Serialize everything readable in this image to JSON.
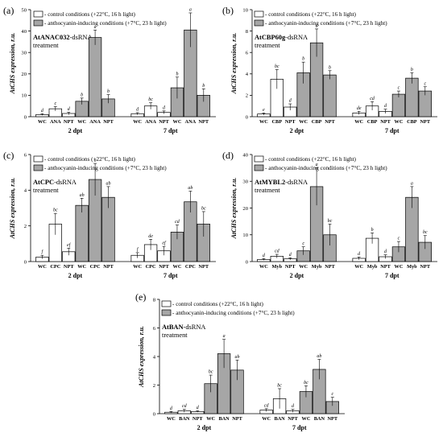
{
  "figure": {
    "legend": {
      "control": "- control conditions (+22°C, 16 h light)",
      "anthocyanin": "- anthocyanin-inducing conditions (+7°C, 23 h light)"
    },
    "colors": {
      "control": "#ffffff",
      "anthocyanin": "#a6a6a6",
      "stroke": "#000000"
    }
  },
  "chart_data": [
    {
      "type": "bar",
      "panel_label": "(a)",
      "treatment_line1": "AtANAC032-dsRNA",
      "treatment_bold": "AtANAC032",
      "treatment_suffix": "-dsRNA",
      "treatment_line2": "treatment",
      "ylabel": "AtCHS expression, r.u.",
      "ylim": [
        0,
        50
      ],
      "yticks": [
        "0",
        "10",
        "20",
        "30",
        "40",
        "50"
      ],
      "groups": [
        "2 dpt",
        "7 dpt"
      ],
      "categories": [
        "WC",
        "ANA",
        "NPT",
        "WC",
        "ANA",
        "NPT"
      ],
      "series": [
        {
          "name": "- control conditions (+22°C, 16 h light)",
          "values_2dpt": [
            1.0,
            3.7,
            1.5
          ],
          "values_7dpt": [
            1.4,
            5.0,
            2.0
          ],
          "errors_2dpt": [
            0.4,
            1.0,
            0.6
          ],
          "errors_7dpt": [
            0.5,
            1.5,
            0.7
          ],
          "letters_2dpt": [
            "d",
            "c",
            "d"
          ],
          "letters_7dpt": [
            "d",
            "bc",
            "d"
          ]
        },
        {
          "name": "- anthocyanin-inducing conditions (+7°C, 23 h light)",
          "values_2dpt": [
            7.2,
            37.0,
            8.3
          ],
          "values_7dpt": [
            13.5,
            40.5,
            10.0
          ],
          "errors_2dpt": [
            1.5,
            3.5,
            2.0
          ],
          "errors_7dpt": [
            5.0,
            8.0,
            3.0
          ],
          "letters_2dpt": [
            "b",
            "a",
            "b"
          ],
          "letters_7dpt": [
            "b",
            "a",
            "b"
          ]
        }
      ]
    },
    {
      "type": "bar",
      "panel_label": "(b)",
      "treatment_bold": "AtCBP60g",
      "treatment_suffix": "-dsRNA",
      "treatment_line2": "treatment",
      "ylabel": "AtCHS expression, r.u.",
      "ylim": [
        0,
        10
      ],
      "yticks": [
        "0",
        "2",
        "4",
        "6",
        "8",
        "10"
      ],
      "groups": [
        "2 dpt",
        "7 dpt"
      ],
      "categories": [
        "WC",
        "CBP",
        "NPT",
        "WC",
        "CBP",
        "NPT"
      ],
      "series": [
        {
          "name": "- control conditions (+22°C, 16 h light)",
          "values_2dpt": [
            0.25,
            3.5,
            0.9
          ],
          "values_7dpt": [
            0.35,
            1.0,
            0.5
          ],
          "errors_2dpt": [
            0.1,
            0.9,
            0.3
          ],
          "errors_7dpt": [
            0.15,
            0.4,
            0.2
          ],
          "letters_2dpt": [
            "e",
            "bc",
            "d"
          ],
          "letters_7dpt": [
            "de",
            "cd",
            "d"
          ]
        },
        {
          "name": "- anthocyanin-inducing conditions (+7°C, 23 h light)",
          "values_2dpt": [
            4.1,
            6.9,
            3.9
          ],
          "values_7dpt": [
            2.1,
            3.6,
            2.4
          ],
          "errors_2dpt": [
            1.0,
            1.3,
            0.4
          ],
          "errors_7dpt": [
            0.3,
            0.5,
            0.4
          ],
          "letters_2dpt": [
            "b",
            "a",
            "b"
          ],
          "letters_7dpt": [
            "c",
            "b",
            "c"
          ]
        }
      ]
    },
    {
      "type": "bar",
      "panel_label": "(c)",
      "treatment_bold": "AtCPC",
      "treatment_suffix": "-dsRNA",
      "treatment_line2": "treatment",
      "ylabel": "AtCHS expression, r.u.",
      "ylim": [
        0,
        6
      ],
      "yticks": [
        "0",
        "2",
        "4",
        "6"
      ],
      "groups": [
        "2 dpt",
        "7 dpt"
      ],
      "categories": [
        "WC",
        "CPC",
        "NPT",
        "WC",
        "CPC",
        "NPT"
      ],
      "series": [
        {
          "name": "- control conditions (+22°C, 16 h light)",
          "values_2dpt": [
            0.25,
            2.1,
            0.55
          ],
          "values_7dpt": [
            0.35,
            0.95,
            0.6
          ],
          "errors_2dpt": [
            0.1,
            0.6,
            0.2
          ],
          "errors_7dpt": [
            0.15,
            0.3,
            0.25
          ],
          "letters_2dpt": [
            "f",
            "bc",
            "ef"
          ],
          "letters_7dpt": [
            "f",
            "de",
            "ef"
          ]
        },
        {
          "name": "- anthocyanin-inducing conditions (+7°C, 23 h light)",
          "values_2dpt": [
            3.15,
            4.6,
            3.6
          ],
          "values_7dpt": [
            1.65,
            3.35,
            2.1
          ],
          "errors_2dpt": [
            0.4,
            0.9,
            0.6
          ],
          "errors_7dpt": [
            0.4,
            0.6,
            0.7
          ],
          "letters_2dpt": [
            "ab",
            "a",
            "ab"
          ],
          "letters_7dpt": [
            "cd",
            "ab",
            "bc"
          ]
        }
      ]
    },
    {
      "type": "bar",
      "panel_label": "(d)",
      "treatment_bold": "AtMYBL2",
      "treatment_suffix": "-dsRNA",
      "treatment_line2": "treatment",
      "ylabel": "AtCHS expression, r.u.",
      "ylim": [
        0,
        40
      ],
      "yticks": [
        "0",
        "10",
        "20",
        "30",
        "40"
      ],
      "groups": [
        "2 dpt",
        "7 dpt"
      ],
      "categories": [
        "WC",
        "Myb",
        "NPT",
        "WC",
        "Myb",
        "NPT"
      ],
      "series": [
        {
          "name": "- control conditions (+22°C, 16 h light)",
          "values_2dpt": [
            0.8,
            2.0,
            1.0
          ],
          "values_7dpt": [
            1.2,
            8.7,
            1.8
          ],
          "errors_2dpt": [
            0.3,
            0.7,
            0.4
          ],
          "errors_7dpt": [
            0.5,
            2.0,
            0.7
          ],
          "letters_2dpt": [
            "d",
            "cd",
            "d"
          ],
          "letters_7dpt": [
            "d",
            "b",
            "d"
          ]
        },
        {
          "name": "- anthocyanin-inducing conditions (+7°C, 23 h light)",
          "values_2dpt": [
            4.0,
            28.0,
            10.0
          ],
          "values_7dpt": [
            5.5,
            24.0,
            7.2
          ],
          "errors_2dpt": [
            1.5,
            7.0,
            4.0
          ],
          "errors_7dpt": [
            2.0,
            4.0,
            2.5
          ],
          "letters_2dpt": [
            "c",
            "a",
            "bc"
          ],
          "letters_7dpt": [
            "c",
            "a",
            "bc"
          ]
        }
      ]
    },
    {
      "type": "bar",
      "panel_label": "(e)",
      "treatment_bold": "AtBAN",
      "treatment_suffix": "-dsRNA",
      "treatment_line2": "treatment",
      "ylabel": "AtCHS expression, r.u.",
      "ylim": [
        0,
        8
      ],
      "yticks": [
        "0",
        "2",
        "4",
        "6",
        "8"
      ],
      "groups": [
        "2 dpt",
        "7 dpt"
      ],
      "categories": [
        "WC",
        "BAN",
        "NPT",
        "WC",
        "BAN",
        "NPT"
      ],
      "series": [
        {
          "name": "- control conditions (+22°C, 16 h light)",
          "values_2dpt": [
            0.1,
            0.2,
            0.15
          ],
          "values_7dpt": [
            0.25,
            1.05,
            0.2
          ],
          "errors_2dpt": [
            0.05,
            0.1,
            0.05
          ],
          "errors_7dpt": [
            0.1,
            0.7,
            0.1
          ],
          "letters_2dpt": [
            "d",
            "cd",
            "d"
          ],
          "letters_7dpt": [
            "cd",
            "bc",
            "d"
          ]
        },
        {
          "name": "- anthocyanin-inducing conditions (+7°C, 23 h light)",
          "values_2dpt": [
            2.1,
            4.2,
            3.05
          ],
          "values_7dpt": [
            1.55,
            3.1,
            0.85
          ],
          "errors_2dpt": [
            0.6,
            1.0,
            0.7
          ],
          "errors_7dpt": [
            0.4,
            0.7,
            0.3
          ],
          "letters_2dpt": [
            "bc",
            "a",
            "ab"
          ],
          "letters_7dpt": [
            "bc",
            "ab",
            "c"
          ]
        }
      ]
    }
  ]
}
